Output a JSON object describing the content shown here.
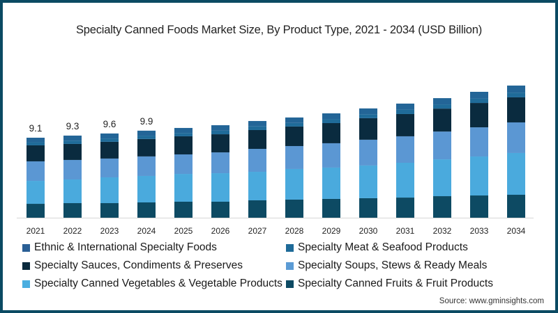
{
  "title": "Specialty Canned Foods Market Size, By Product Type, 2021 - 2034 (USD Billion)",
  "source": "Source: www.gminsights.com",
  "chart_data": {
    "type": "bar",
    "stacked": true,
    "title": "Specialty Canned Foods Market Size, By Product Type, 2021 - 2034 (USD Billion)",
    "xlabel": "",
    "ylabel": "USD Billion",
    "ylim": [
      0,
      16
    ],
    "grid": false,
    "legend_position": "bottom",
    "categories": [
      "2021",
      "2022",
      "2023",
      "2024",
      "2025",
      "2026",
      "2027",
      "2028",
      "2029",
      "2030",
      "2031",
      "2032",
      "2033",
      "2034"
    ],
    "data_labels": {
      "2021": "9.1",
      "2022": "9.3",
      "2023": "9.6",
      "2024": "9.9"
    },
    "series": [
      {
        "name": "Specialty Canned Fruits & Fruit Products",
        "color": "#0d4a63",
        "values": [
          1.58,
          1.66,
          1.66,
          1.74,
          1.82,
          1.82,
          1.98,
          2.06,
          2.14,
          2.22,
          2.29,
          2.45,
          2.53,
          2.61
        ]
      },
      {
        "name": "Specialty Canned Vegetables & Vegetable Products",
        "color": "#4aaadd",
        "values": [
          2.61,
          2.69,
          2.93,
          3.01,
          3.16,
          3.24,
          3.24,
          3.48,
          3.56,
          3.72,
          3.96,
          4.19,
          4.43,
          4.75
        ]
      },
      {
        "name": "Specialty Soups, Stews & Ready Meals",
        "color": "#5b97d3",
        "values": [
          2.22,
          2.22,
          2.14,
          2.22,
          2.22,
          2.37,
          2.61,
          2.61,
          2.77,
          2.93,
          3.01,
          3.16,
          3.32,
          3.48
        ]
      },
      {
        "name": "Specialty Sauces, Condiments & Preserves",
        "color": "#0a2b3f",
        "values": [
          1.82,
          1.82,
          1.9,
          1.98,
          2.06,
          2.06,
          2.14,
          2.22,
          2.29,
          2.45,
          2.53,
          2.61,
          2.77,
          2.85
        ]
      },
      {
        "name": "Specialty Meat & Seafood Products",
        "color": "#1f6b99",
        "values": [
          0.35,
          0.38,
          0.38,
          0.38,
          0.38,
          0.41,
          0.41,
          0.41,
          0.44,
          0.44,
          0.48,
          0.48,
          0.51,
          0.54
        ]
      },
      {
        "name": "Ethnic & International Specialty Foods",
        "color": "#236597",
        "values": [
          0.52,
          0.57,
          0.57,
          0.57,
          0.57,
          0.62,
          0.62,
          0.62,
          0.67,
          0.67,
          0.71,
          0.71,
          0.76,
          0.8
        ]
      }
    ]
  },
  "legend": [
    {
      "label": "Ethnic & International Specialty Foods",
      "color": "#2a5f95"
    },
    {
      "label": "Specialty Meat & Seafood Products",
      "color": "#1e6a98"
    },
    {
      "label": "Specialty Sauces, Condiments & Preserves",
      "color": "#0b2a3d"
    },
    {
      "label": "Specialty Soups, Stews & Ready Meals",
      "color": "#5b9bd5"
    },
    {
      "label": "Specialty Canned Vegetables & Vegetable Products",
      "color": "#4aaee0"
    },
    {
      "label": "Specialty Canned Fruits & Fruit Products",
      "color": "#0d4a63"
    }
  ]
}
